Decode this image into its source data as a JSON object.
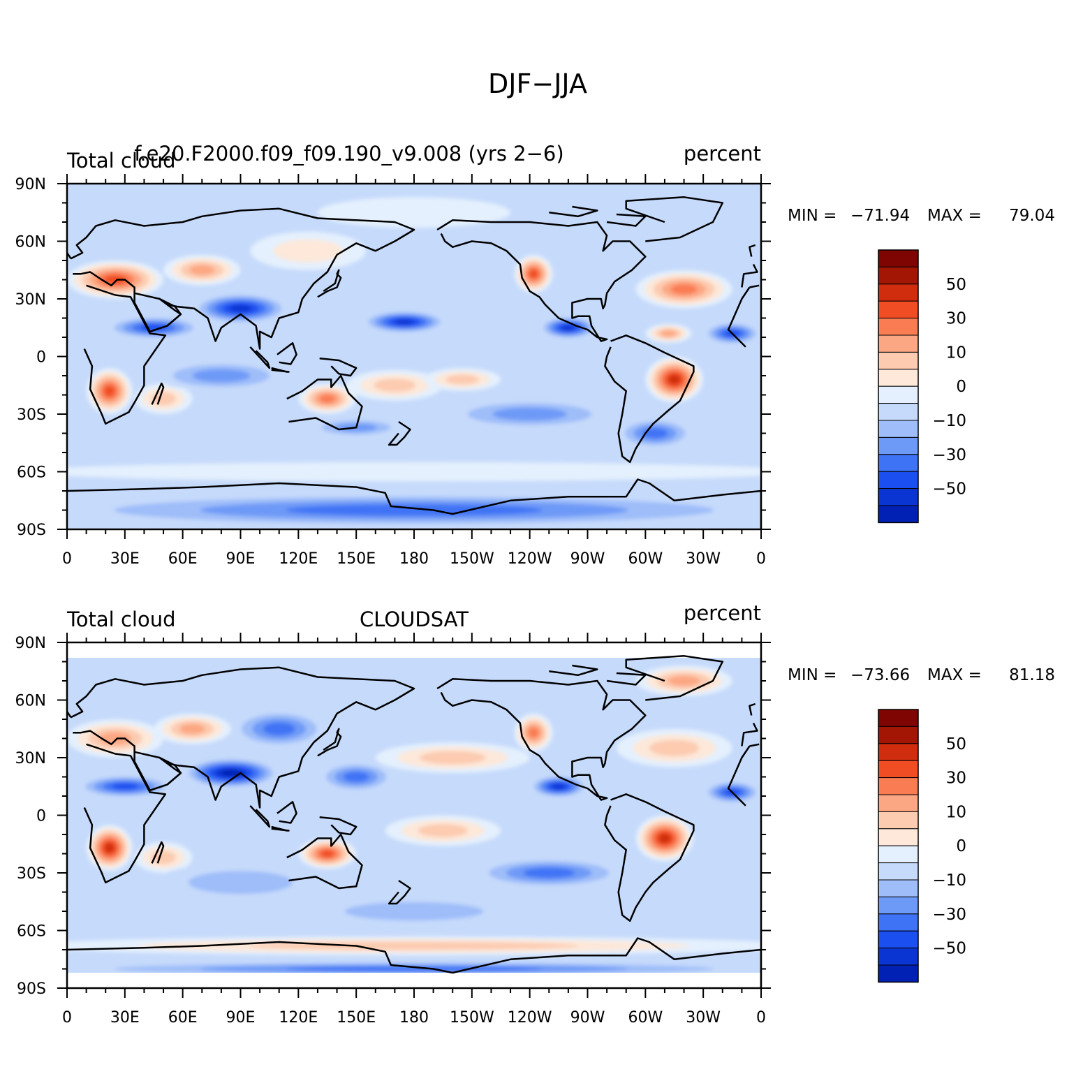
{
  "title": "DJF−JJA",
  "colors": {
    "levels": [
      "#000e8c",
      "#0021b4",
      "#0a35d2",
      "#1b4ff0",
      "#3f73f5",
      "#6e9af7",
      "#9ebdf9",
      "#c6dafb",
      "#e4f0fd",
      "#fde8d9",
      "#fccbb0",
      "#fca783",
      "#fa7c52",
      "#f04d24",
      "#cf2d0e",
      "#a41604",
      "#7e0501"
    ],
    "land_outline": "#000000"
  },
  "panels": [
    {
      "id": "model",
      "left_title": "Total cloud",
      "center_title": "f.e20.F2000.f09_f09.190_v9.008 (yrs 2−6)",
      "right_title": "percent",
      "min_label": "MIN =",
      "min_value": "−71.94",
      "max_label": "MAX =",
      "max_value": "79.04",
      "lat_range": [
        -90,
        90
      ]
    },
    {
      "id": "obs",
      "left_title": "Total cloud",
      "center_title": "CLOUDSAT",
      "right_title": "percent",
      "min_label": "MIN =",
      "min_value": "−73.66",
      "max_label": "MAX =",
      "max_value": "81.18",
      "lat_range": [
        -82,
        82
      ]
    }
  ],
  "axes": {
    "lon_ticks": [
      "0",
      "30E",
      "60E",
      "90E",
      "120E",
      "150E",
      "180",
      "150W",
      "120W",
      "90W",
      "60W",
      "30W",
      "0"
    ],
    "lat_ticks": [
      "90N",
      "60N",
      "30N",
      "0",
      "30S",
      "60S",
      "90S"
    ],
    "lon_range": [
      0,
      360
    ],
    "lat_range": [
      -90,
      90
    ]
  },
  "colorbar": {
    "labels": [
      "50",
      "30",
      "10",
      "0",
      "−10",
      "−30",
      "−50"
    ]
  },
  "chart_data": [
    {
      "type": "heatmap",
      "title": "Total cloud",
      "subtitle": "f.e20.F2000.f09_f09.190_v9.008 (yrs 2−6)",
      "units": "percent",
      "xlabel": "",
      "ylabel": "",
      "xlim": [
        0,
        360
      ],
      "ylim": [
        -90,
        90
      ],
      "min": -71.94,
      "max": 79.04,
      "features": [
        {
          "lon": 25,
          "lat": 40,
          "value": 55,
          "rlon": 25,
          "rlat": 10
        },
        {
          "lon": 70,
          "lat": 45,
          "value": 40,
          "rlon": 20,
          "rlat": 8
        },
        {
          "lon": 125,
          "lat": 55,
          "value": 20,
          "rlon": 30,
          "rlat": 10
        },
        {
          "lon": 22,
          "lat": -18,
          "value": 60,
          "rlon": 12,
          "rlat": 12
        },
        {
          "lon": 50,
          "lat": -22,
          "value": 30,
          "rlon": 15,
          "rlat": 8
        },
        {
          "lon": 135,
          "lat": -22,
          "value": 50,
          "rlon": 15,
          "rlat": 8
        },
        {
          "lon": 170,
          "lat": -15,
          "value": 25,
          "rlon": 25,
          "rlat": 8
        },
        {
          "lon": 205,
          "lat": -12,
          "value": 30,
          "rlon": 20,
          "rlat": 6
        },
        {
          "lon": 242,
          "lat": 43,
          "value": 60,
          "rlon": 10,
          "rlat": 10
        },
        {
          "lon": 315,
          "lat": -12,
          "value": 65,
          "rlon": 15,
          "rlat": 12
        },
        {
          "lon": 320,
          "lat": 35,
          "value": 45,
          "rlon": 25,
          "rlat": 10
        },
        {
          "lon": 312,
          "lat": 12,
          "value": 40,
          "rlon": 12,
          "rlat": 5
        },
        {
          "lon": 180,
          "lat": 75,
          "value": 10,
          "rlon": 50,
          "rlat": 8
        },
        {
          "lon": 90,
          "lat": 25,
          "value": -60,
          "rlon": 25,
          "rlat": 8
        },
        {
          "lon": 45,
          "lat": 15,
          "value": -45,
          "rlon": 25,
          "rlat": 6
        },
        {
          "lon": 175,
          "lat": 18,
          "value": -55,
          "rlon": 22,
          "rlat": 6
        },
        {
          "lon": 260,
          "lat": 15,
          "value": -60,
          "rlon": 15,
          "rlat": 6
        },
        {
          "lon": 345,
          "lat": 12,
          "value": -50,
          "rlon": 15,
          "rlat": 6
        },
        {
          "lon": 80,
          "lat": -10,
          "value": -30,
          "rlon": 35,
          "rlat": 8
        },
        {
          "lon": 240,
          "lat": -30,
          "value": -30,
          "rlon": 45,
          "rlat": 8
        },
        {
          "lon": 305,
          "lat": -40,
          "value": -35,
          "rlon": 20,
          "rlat": 8
        },
        {
          "lon": 150,
          "lat": -37,
          "value": -30,
          "rlon": 25,
          "rlat": 5
        },
        {
          "lon": 180,
          "lat": -80,
          "value": -40,
          "rlon": 200,
          "rlat": 9
        },
        {
          "lon": 180,
          "lat": -60,
          "value": 8,
          "rlon": 200,
          "rlat": 5
        }
      ]
    },
    {
      "type": "heatmap",
      "title": "Total cloud",
      "subtitle": "CLOUDSAT",
      "units": "percent",
      "xlabel": "",
      "ylabel": "",
      "xlim": [
        0,
        360
      ],
      "ylim": [
        -82,
        82
      ],
      "min": -73.66,
      "max": 81.18,
      "features": [
        {
          "lon": 25,
          "lat": 40,
          "value": 40,
          "rlon": 25,
          "rlat": 10
        },
        {
          "lon": 65,
          "lat": 45,
          "value": 35,
          "rlon": 20,
          "rlat": 8
        },
        {
          "lon": 22,
          "lat": -17,
          "value": 65,
          "rlon": 12,
          "rlat": 12
        },
        {
          "lon": 50,
          "lat": -22,
          "value": 30,
          "rlon": 15,
          "rlat": 8
        },
        {
          "lon": 135,
          "lat": -20,
          "value": 55,
          "rlon": 15,
          "rlat": 8
        },
        {
          "lon": 195,
          "lat": -8,
          "value": 30,
          "rlon": 30,
          "rlat": 8
        },
        {
          "lon": 200,
          "lat": 30,
          "value": 25,
          "rlon": 40,
          "rlat": 8
        },
        {
          "lon": 242,
          "lat": 43,
          "value": 45,
          "rlon": 10,
          "rlat": 10
        },
        {
          "lon": 310,
          "lat": -12,
          "value": 65,
          "rlon": 15,
          "rlat": 12
        },
        {
          "lon": 315,
          "lat": 35,
          "value": 30,
          "rlon": 30,
          "rlat": 10
        },
        {
          "lon": 320,
          "lat": 70,
          "value": 35,
          "rlon": 25,
          "rlat": 8
        },
        {
          "lon": 180,
          "lat": -68,
          "value": 30,
          "rlon": 200,
          "rlat": 5
        },
        {
          "lon": 85,
          "lat": 22,
          "value": -65,
          "rlon": 25,
          "rlat": 8
        },
        {
          "lon": 30,
          "lat": 15,
          "value": -50,
          "rlon": 25,
          "rlat": 6
        },
        {
          "lon": 110,
          "lat": 45,
          "value": -35,
          "rlon": 25,
          "rlat": 10
        },
        {
          "lon": 150,
          "lat": 20,
          "value": -35,
          "rlon": 20,
          "rlat": 8
        },
        {
          "lon": 255,
          "lat": 15,
          "value": -55,
          "rlon": 15,
          "rlat": 6
        },
        {
          "lon": 345,
          "lat": 12,
          "value": -45,
          "rlon": 15,
          "rlat": 6
        },
        {
          "lon": 90,
          "lat": -35,
          "value": -20,
          "rlon": 45,
          "rlat": 10
        },
        {
          "lon": 250,
          "lat": -30,
          "value": -35,
          "rlon": 40,
          "rlat": 8
        },
        {
          "lon": 180,
          "lat": -50,
          "value": -15,
          "rlon": 60,
          "rlat": 8
        },
        {
          "lon": 180,
          "lat": -80,
          "value": -40,
          "rlon": 200,
          "rlat": 4
        }
      ]
    }
  ]
}
